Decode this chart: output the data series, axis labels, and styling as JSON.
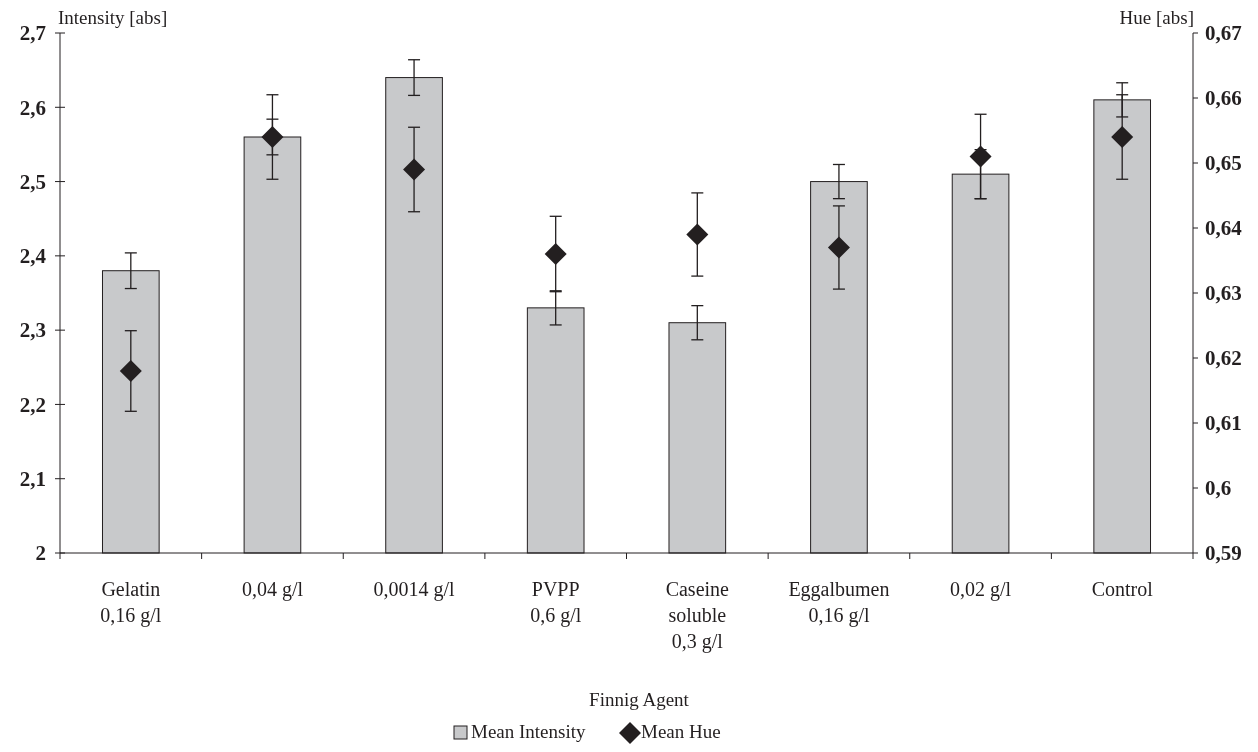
{
  "chart_data": {
    "type": "bar",
    "xlabel": "Finnig Agent",
    "ylabel": "Intensity [abs]",
    "y2label": "Hue [abs]",
    "categories": [
      "Gelatin\n0,16 g/l",
      "0,04 g/l",
      "0,0014 g/l",
      "PVPP\n0,6 g/l",
      "Caseine\nsoluble\n0,3 g/l",
      "Eggalbumen\n0,16 g/l",
      "0,02 g/l",
      "Control"
    ],
    "series": [
      {
        "name": "Mean Intensity",
        "color": "#c8c9cb",
        "values": [
          2.38,
          2.56,
          2.64,
          2.33,
          2.31,
          2.5,
          2.51,
          2.61
        ],
        "errors": [
          0.024,
          0.024,
          0.024,
          0.023,
          0.023,
          0.023,
          0.033,
          0.023
        ]
      },
      {
        "name": "Mean Hue",
        "type": "scatter",
        "axis": "y2",
        "marker": "diamond",
        "color": "#231f20",
        "values": [
          0.618,
          0.654,
          0.649,
          0.636,
          0.639,
          0.637,
          0.651,
          0.654
        ],
        "errors": [
          0.0062,
          0.0065,
          0.0065,
          0.0058,
          0.0064,
          0.0064,
          0.0065,
          0.0065
        ]
      }
    ],
    "ylim": [
      2,
      2.7
    ],
    "yticks": [
      {
        "value": 2,
        "label": "2"
      },
      {
        "value": 2.1,
        "label": "2,1"
      },
      {
        "value": 2.2,
        "label": "2,2"
      },
      {
        "value": 2.3,
        "label": "2,3"
      },
      {
        "value": 2.4,
        "label": "2,4"
      },
      {
        "value": 2.5,
        "label": "2,5"
      },
      {
        "value": 2.6,
        "label": "2,6"
      },
      {
        "value": 2.7,
        "label": "2,7"
      }
    ],
    "y2lim": [
      0.59,
      0.67
    ],
    "y2ticks": [
      {
        "value": 0.59,
        "label": "0,59"
      },
      {
        "value": 0.6,
        "label": "0,6"
      },
      {
        "value": 0.61,
        "label": "0,61"
      },
      {
        "value": 0.62,
        "label": "0,62"
      },
      {
        "value": 0.63,
        "label": "0,63"
      },
      {
        "value": 0.64,
        "label": "0,64"
      },
      {
        "value": 0.65,
        "label": "0,65"
      },
      {
        "value": 0.66,
        "label": "0,66"
      },
      {
        "value": 0.67,
        "label": "0,67"
      }
    ],
    "grid": false,
    "legend": "bottom"
  }
}
